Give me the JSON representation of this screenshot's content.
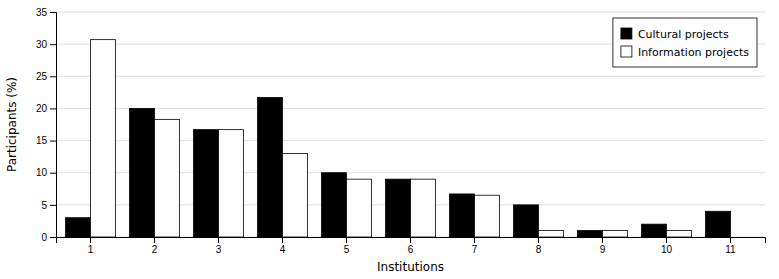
{
  "chart_data": {
    "type": "bar",
    "xlabel": "Institutions",
    "ylabel": "Participants (%)",
    "categories": [
      "1",
      "2",
      "3",
      "4",
      "5",
      "6",
      "7",
      "8",
      "9",
      "10",
      "11"
    ],
    "series": [
      {
        "name": "Cultural projects",
        "color": "#000000",
        "values": [
          3.0,
          20.0,
          16.7,
          21.7,
          10.0,
          9.0,
          6.7,
          5.0,
          1.0,
          2.0,
          4.0
        ]
      },
      {
        "name": "Information projects",
        "color": "#ffffff",
        "values": [
          30.7,
          18.3,
          16.7,
          13.0,
          9.0,
          9.0,
          6.5,
          1.0,
          1.0,
          1.0,
          0.0
        ]
      }
    ],
    "ylim": [
      0,
      35
    ],
    "yticks": [
      0,
      5,
      10,
      15,
      20,
      25,
      30,
      35
    ],
    "grid": true,
    "legend": "upper right"
  }
}
